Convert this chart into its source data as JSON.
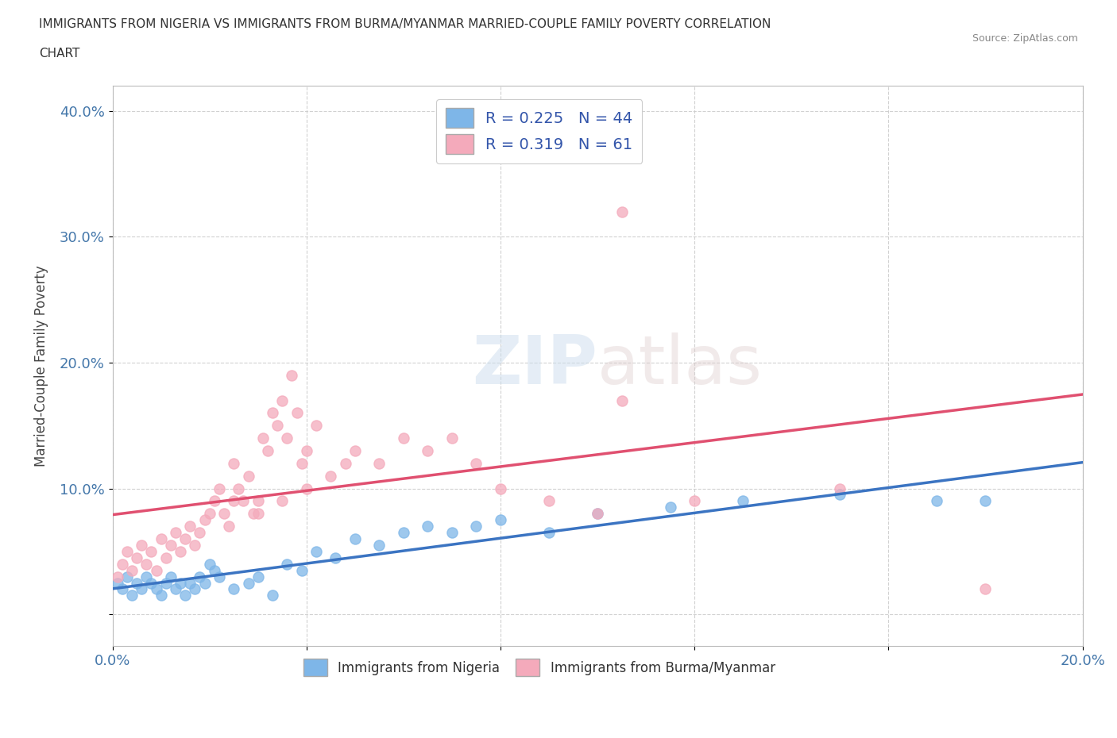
{
  "title_line1": "IMMIGRANTS FROM NIGERIA VS IMMIGRANTS FROM BURMA/MYANMAR MARRIED-COUPLE FAMILY POVERTY CORRELATION",
  "title_line2": "CHART",
  "source": "Source: ZipAtlas.com",
  "ylabel": "Married-Couple Family Poverty",
  "xlim": [
    0.0,
    0.2
  ],
  "ylim": [
    -0.025,
    0.42
  ],
  "x_ticks": [
    0.0,
    0.04,
    0.08,
    0.12,
    0.16,
    0.2
  ],
  "x_tick_labels": [
    "0.0%",
    "",
    "",
    "",
    "",
    "20.0%"
  ],
  "y_ticks": [
    0.0,
    0.1,
    0.2,
    0.3,
    0.4
  ],
  "y_tick_labels": [
    "",
    "10.0%",
    "20.0%",
    "30.0%",
    "40.0%"
  ],
  "nigeria_color": "#7EB6E8",
  "nigeria_line_color": "#3B74C2",
  "burma_color": "#F4AABB",
  "burma_line_color": "#E05070",
  "nigeria_R": 0.225,
  "nigeria_N": 44,
  "burma_R": 0.319,
  "burma_N": 61,
  "nigeria_x": [
    0.001,
    0.002,
    0.003,
    0.004,
    0.005,
    0.006,
    0.007,
    0.008,
    0.009,
    0.01,
    0.011,
    0.012,
    0.013,
    0.014,
    0.015,
    0.016,
    0.017,
    0.018,
    0.019,
    0.02,
    0.021,
    0.022,
    0.025,
    0.028,
    0.03,
    0.033,
    0.036,
    0.039,
    0.042,
    0.046,
    0.05,
    0.055,
    0.06,
    0.065,
    0.07,
    0.075,
    0.08,
    0.09,
    0.1,
    0.115,
    0.13,
    0.15,
    0.17,
    0.18
  ],
  "nigeria_y": [
    0.025,
    0.02,
    0.03,
    0.015,
    0.025,
    0.02,
    0.03,
    0.025,
    0.02,
    0.015,
    0.025,
    0.03,
    0.02,
    0.025,
    0.015,
    0.025,
    0.02,
    0.03,
    0.025,
    0.04,
    0.035,
    0.03,
    0.02,
    0.025,
    0.03,
    0.015,
    0.04,
    0.035,
    0.05,
    0.045,
    0.06,
    0.055,
    0.065,
    0.07,
    0.065,
    0.07,
    0.075,
    0.065,
    0.08,
    0.085,
    0.09,
    0.095,
    0.09,
    0.09
  ],
  "burma_x": [
    0.001,
    0.002,
    0.003,
    0.004,
    0.005,
    0.006,
    0.007,
    0.008,
    0.009,
    0.01,
    0.011,
    0.012,
    0.013,
    0.014,
    0.015,
    0.016,
    0.017,
    0.018,
    0.019,
    0.02,
    0.021,
    0.022,
    0.023,
    0.024,
    0.025,
    0.026,
    0.027,
    0.028,
    0.029,
    0.03,
    0.031,
    0.032,
    0.033,
    0.034,
    0.035,
    0.036,
    0.037,
    0.038,
    0.039,
    0.04,
    0.042,
    0.045,
    0.048,
    0.05,
    0.055,
    0.06,
    0.065,
    0.07,
    0.075,
    0.08,
    0.09,
    0.1,
    0.105,
    0.12,
    0.15,
    0.18,
    0.025,
    0.03,
    0.035,
    0.04,
    0.105
  ],
  "burma_y": [
    0.03,
    0.04,
    0.05,
    0.035,
    0.045,
    0.055,
    0.04,
    0.05,
    0.035,
    0.06,
    0.045,
    0.055,
    0.065,
    0.05,
    0.06,
    0.07,
    0.055,
    0.065,
    0.075,
    0.08,
    0.09,
    0.1,
    0.08,
    0.07,
    0.12,
    0.1,
    0.09,
    0.11,
    0.08,
    0.09,
    0.14,
    0.13,
    0.16,
    0.15,
    0.17,
    0.14,
    0.19,
    0.16,
    0.12,
    0.13,
    0.15,
    0.11,
    0.12,
    0.13,
    0.12,
    0.14,
    0.13,
    0.14,
    0.12,
    0.1,
    0.09,
    0.08,
    0.17,
    0.09,
    0.1,
    0.02,
    0.09,
    0.08,
    0.09,
    0.1,
    0.32
  ],
  "watermark_zip": "ZIP",
  "watermark_atlas": "atlas",
  "background_color": "#FFFFFF",
  "grid_color": "#CCCCCC",
  "legend_nigeria": "Immigrants from Nigeria",
  "legend_burma": "Immigrants from Burma/Myanmar"
}
